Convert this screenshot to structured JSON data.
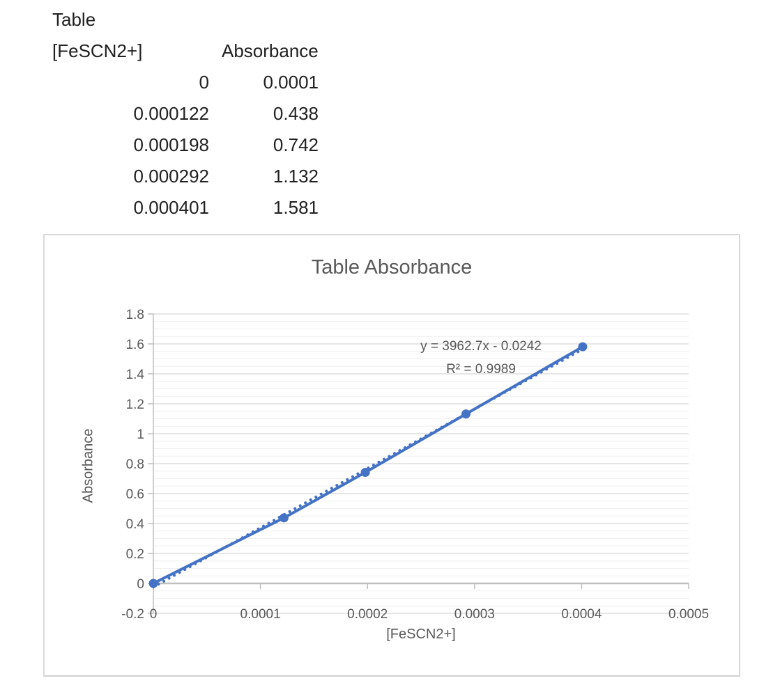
{
  "table": {
    "title": "Table",
    "columns": [
      "[FeSCN2+]",
      "Absorbance"
    ],
    "rows": [
      [
        "0",
        "0.0001"
      ],
      [
        "0.000122",
        "0.438"
      ],
      [
        "0.000198",
        "0.742"
      ],
      [
        "0.000292",
        "1.132"
      ],
      [
        "0.000401",
        "1.581"
      ]
    ]
  },
  "chart": {
    "title": "Table Absorbance",
    "equation": "y = 3962.7x - 0.0242",
    "r_squared": "R² = 0.9989",
    "x_axis_title": "[FeSCN2+]",
    "y_axis_title": "Absorbance"
  },
  "chart_data": {
    "type": "scatter",
    "title": "Table Absorbance",
    "xlabel": "[FeSCN2+]",
    "ylabel": "Absorbance",
    "x": [
      0,
      0.000122,
      0.000198,
      0.000292,
      0.000401
    ],
    "y": [
      0.0001,
      0.438,
      0.742,
      1.132,
      1.581
    ],
    "series_style": "straight-lines-with-round-markers",
    "trendline": {
      "slope": 3962.7,
      "intercept": -0.0242,
      "equation": "y = 3962.7x - 0.0242",
      "r2_label": "R² = 0.9989",
      "style": "dotted"
    },
    "xlim": [
      0,
      0.0005
    ],
    "ylim": [
      -0.2,
      1.8
    ],
    "x_ticks": [
      "0",
      "0.0001",
      "0.0002",
      "0.0003",
      "0.0004",
      "0.0005"
    ],
    "y_ticks": [
      "-0.2",
      "0",
      "0.2",
      "0.4",
      "0.6",
      "0.8",
      "1",
      "1.2",
      "1.4",
      "1.6",
      "1.8"
    ],
    "x_tick_step": 0.0001,
    "y_tick_step": 0.2,
    "y_minor_step": 0.05,
    "grid": "horizontal major+minor, no vertical gridlines",
    "legend": "none",
    "colors": {
      "series": "#4472C4",
      "text": "#595959",
      "gridline_major": "#D6D6D6",
      "gridline_minor": "#EFEFEF",
      "axis_line": "#BFBFBF"
    }
  }
}
